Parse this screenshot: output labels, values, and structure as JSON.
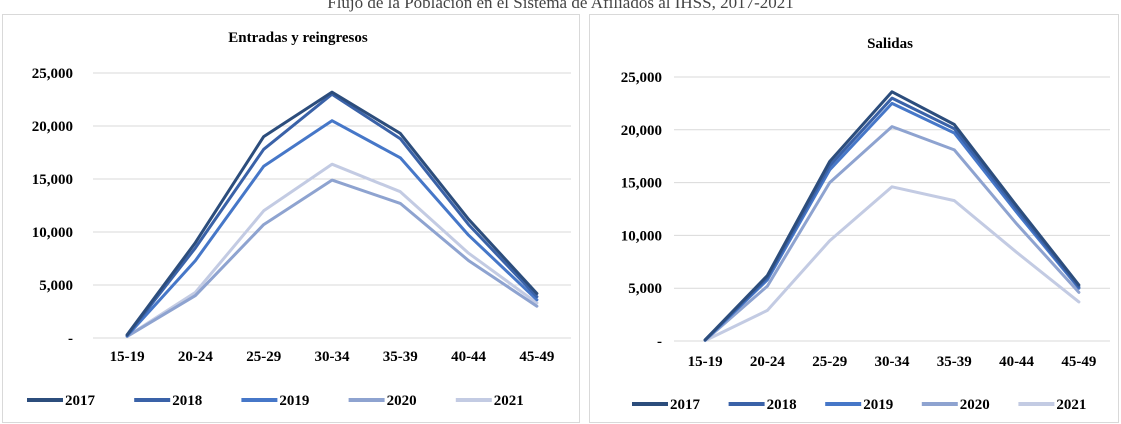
{
  "page": {
    "caption": "Flujo de la Población en el Sistema de Afiliados al IHSS, 2017-2021"
  },
  "chart_data": [
    {
      "type": "line",
      "title": "Entradas y reingresos",
      "categories": [
        "15-19",
        "20-24",
        "25-29",
        "30-34",
        "35-39",
        "40-44",
        "45-49"
      ],
      "y_tick_labels": [
        "-",
        "5,000",
        "10,000",
        "15,000",
        "20,000",
        "25,000"
      ],
      "ylim": [
        0,
        25000
      ],
      "grid": true,
      "legend_position": "bottom",
      "series": [
        {
          "name": "2017",
          "color": "#2c4d7c",
          "values": [
            300,
            9000,
            19000,
            23200,
            19300,
            11200,
            4200
          ]
        },
        {
          "name": "2018",
          "color": "#3a62a8",
          "values": [
            250,
            8500,
            17800,
            23000,
            18800,
            10700,
            3900
          ]
        },
        {
          "name": "2019",
          "color": "#4677c8",
          "values": [
            200,
            7300,
            16200,
            20500,
            17000,
            9700,
            3600
          ]
        },
        {
          "name": "2020",
          "color": "#8ea3d0",
          "values": [
            150,
            4000,
            10700,
            14900,
            12700,
            7300,
            3000
          ]
        },
        {
          "name": "2021",
          "color": "#c3cbe3",
          "values": [
            150,
            4300,
            12000,
            16400,
            13800,
            8000,
            3300
          ]
        }
      ]
    },
    {
      "type": "line",
      "title": "Salidas",
      "categories": [
        "15-19",
        "20-24",
        "25-29",
        "30-34",
        "35-39",
        "40-44",
        "45-49"
      ],
      "y_tick_labels": [
        "-",
        "5,000",
        "10,000",
        "15,000",
        "20,000",
        "25,000"
      ],
      "ylim": [
        0,
        25000
      ],
      "grid": true,
      "legend_position": "bottom",
      "series": [
        {
          "name": "2017",
          "color": "#2c4d7c",
          "values": [
            100,
            6200,
            17000,
            23600,
            20500,
            12800,
            5300
          ]
        },
        {
          "name": "2018",
          "color": "#3a62a8",
          "values": [
            100,
            6000,
            16600,
            23000,
            20100,
            12500,
            5100
          ]
        },
        {
          "name": "2019",
          "color": "#4677c8",
          "values": [
            80,
            5800,
            16200,
            22500,
            19700,
            12200,
            5000
          ]
        },
        {
          "name": "2020",
          "color": "#8ea3d0",
          "values": [
            60,
            5200,
            15000,
            20300,
            18100,
            11100,
            4600
          ]
        },
        {
          "name": "2021",
          "color": "#c3cbe3",
          "values": [
            40,
            2900,
            9500,
            14600,
            13300,
            8400,
            3700
          ]
        }
      ]
    }
  ]
}
